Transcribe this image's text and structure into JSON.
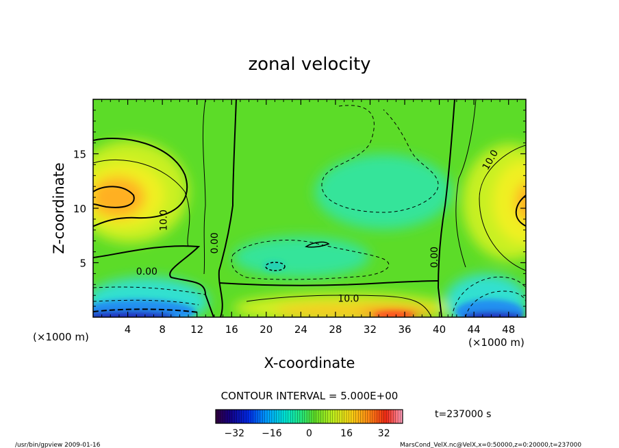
{
  "chart_data": {
    "type": "heatmap",
    "title": "zonal velocity",
    "xlabel": "X-coordinate",
    "ylabel": "Z-coordinate",
    "xunit_left": "(×1000 m)",
    "xunit_right": "(×1000 m)",
    "xlim": [
      0,
      50
    ],
    "ylim": [
      0,
      20
    ],
    "xticks": [
      4,
      8,
      12,
      16,
      20,
      24,
      28,
      32,
      36,
      40,
      44,
      48
    ],
    "yticks": [
      5,
      10,
      15
    ],
    "contour_labels": [
      {
        "text": "10.0",
        "x": 8.5,
        "z": 8.9,
        "rotate": -90
      },
      {
        "text": "0.00",
        "x": 14.4,
        "z": 6.8,
        "rotate": -90
      },
      {
        "text": "0.00",
        "x": 6.2,
        "z": 3.9,
        "rotate": 0
      },
      {
        "text": "10.0",
        "x": 29.5,
        "z": 1.4,
        "rotate": 0
      },
      {
        "text": "0.00",
        "x": 39.8,
        "z": 5.5,
        "rotate": -90
      },
      {
        "text": "10.0",
        "x": 46.2,
        "z": 14.3,
        "rotate": -60
      }
    ],
    "colorbar": {
      "ticks": [
        -32,
        -16,
        0,
        16,
        32
      ],
      "range": [
        -40,
        40
      ]
    },
    "contour_interval_text": "CONTOUR INTERVAL = 5.000E+00",
    "time_text": "t=237000 s"
  },
  "footer": {
    "left": "/usr/bin/gpview  2009-01-16",
    "right": "MarsCond_VelX.nc@VelX,x=0:50000,z=0:20000,t=237000"
  }
}
